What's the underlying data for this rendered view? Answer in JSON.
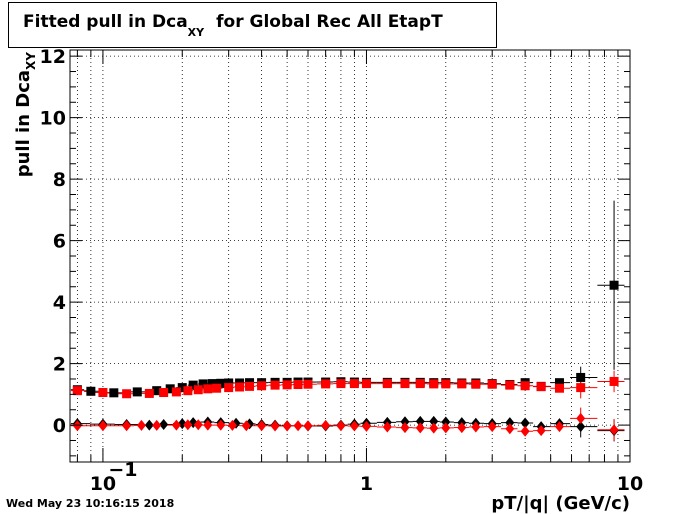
{
  "title_main": "Fitted pull in Dca",
  "title_sub": "XY",
  "title_rest": "for Global Rec All EtapT",
  "timestamp": "Wed May 23 10:16:15 2018",
  "chart_data": {
    "type": "scatter",
    "title": "Fitted pull in Dca XY for Global Rec All EtapT",
    "xlabel": "pT/|q| (GeV/c)",
    "ylabel_main": "pull in Dca",
    "ylabel_sub": "XY",
    "xscale": "log",
    "xlim": [
      0.075,
      10
    ],
    "ylim": [
      -1.2,
      12.2
    ],
    "grid": true,
    "x_ticks": [
      {
        "value": 0.1,
        "label": "10",
        "exp": "−1"
      },
      {
        "value": 1,
        "label": "1",
        "exp": ""
      },
      {
        "value": 10,
        "label": "10",
        "exp": ""
      }
    ],
    "y_ticks": [
      0,
      2,
      4,
      6,
      8,
      10,
      12
    ],
    "series": [
      {
        "marker": "square",
        "color": "#000000",
        "points": [
          {
            "x": 0.08,
            "y": 1.15
          },
          {
            "x": 0.09,
            "y": 1.1
          },
          {
            "x": 0.11,
            "y": 1.05
          },
          {
            "x": 0.135,
            "y": 1.08
          },
          {
            "x": 0.16,
            "y": 1.12
          },
          {
            "x": 0.18,
            "y": 1.18
          },
          {
            "x": 0.2,
            "y": 1.22
          },
          {
            "x": 0.22,
            "y": 1.3
          },
          {
            "x": 0.24,
            "y": 1.34
          },
          {
            "x": 0.26,
            "y": 1.35
          },
          {
            "x": 0.28,
            "y": 1.36
          },
          {
            "x": 0.3,
            "y": 1.37
          },
          {
            "x": 0.33,
            "y": 1.37
          },
          {
            "x": 0.36,
            "y": 1.38
          },
          {
            "x": 0.4,
            "y": 1.38
          },
          {
            "x": 0.45,
            "y": 1.39
          },
          {
            "x": 0.5,
            "y": 1.39
          },
          {
            "x": 0.55,
            "y": 1.4
          },
          {
            "x": 0.6,
            "y": 1.4
          },
          {
            "x": 0.7,
            "y": 1.4
          },
          {
            "x": 0.8,
            "y": 1.41
          },
          {
            "x": 0.9,
            "y": 1.4
          },
          {
            "x": 1.0,
            "y": 1.39
          },
          {
            "x": 1.2,
            "y": 1.39
          },
          {
            "x": 1.4,
            "y": 1.39
          },
          {
            "x": 1.6,
            "y": 1.39
          },
          {
            "x": 1.8,
            "y": 1.38
          },
          {
            "x": 2.0,
            "y": 1.38
          },
          {
            "x": 2.3,
            "y": 1.37
          },
          {
            "x": 2.6,
            "y": 1.37
          },
          {
            "x": 3.0,
            "y": 1.35
          },
          {
            "x": 3.5,
            "y": 1.32
          },
          {
            "x": 4.0,
            "y": 1.38
          },
          {
            "x": 4.6,
            "y": 1.26
          },
          {
            "x": 5.4,
            "y": 1.38
          },
          {
            "x": 6.5,
            "y": 1.55
          },
          {
            "x": 8.7,
            "y": 4.55
          }
        ]
      },
      {
        "marker": "square",
        "color": "#ff0000",
        "points": [
          {
            "x": 0.08,
            "y": 1.12
          },
          {
            "x": 0.1,
            "y": 1.06
          },
          {
            "x": 0.123,
            "y": 1.02
          },
          {
            "x": 0.15,
            "y": 1.03
          },
          {
            "x": 0.17,
            "y": 1.06
          },
          {
            "x": 0.19,
            "y": 1.08
          },
          {
            "x": 0.21,
            "y": 1.12
          },
          {
            "x": 0.23,
            "y": 1.15
          },
          {
            "x": 0.25,
            "y": 1.18
          },
          {
            "x": 0.27,
            "y": 1.2
          },
          {
            "x": 0.3,
            "y": 1.22
          },
          {
            "x": 0.33,
            "y": 1.24
          },
          {
            "x": 0.36,
            "y": 1.26
          },
          {
            "x": 0.4,
            "y": 1.28
          },
          {
            "x": 0.45,
            "y": 1.3
          },
          {
            "x": 0.5,
            "y": 1.31
          },
          {
            "x": 0.55,
            "y": 1.32
          },
          {
            "x": 0.6,
            "y": 1.33
          },
          {
            "x": 0.7,
            "y": 1.34
          },
          {
            "x": 0.8,
            "y": 1.35
          },
          {
            "x": 0.9,
            "y": 1.35
          },
          {
            "x": 1.0,
            "y": 1.35
          },
          {
            "x": 1.2,
            "y": 1.35
          },
          {
            "x": 1.4,
            "y": 1.35
          },
          {
            "x": 1.6,
            "y": 1.35
          },
          {
            "x": 1.8,
            "y": 1.34
          },
          {
            "x": 2.0,
            "y": 1.34
          },
          {
            "x": 2.3,
            "y": 1.34
          },
          {
            "x": 2.6,
            "y": 1.33
          },
          {
            "x": 3.0,
            "y": 1.33
          },
          {
            "x": 3.5,
            "y": 1.3
          },
          {
            "x": 4.0,
            "y": 1.28
          },
          {
            "x": 4.6,
            "y": 1.25
          },
          {
            "x": 5.4,
            "y": 1.2
          },
          {
            "x": 6.5,
            "y": 1.22
          },
          {
            "x": 8.7,
            "y": 1.42
          }
        ]
      },
      {
        "marker": "diamond",
        "color": "#000000",
        "points": [
          {
            "x": 0.08,
            "y": 0.05
          },
          {
            "x": 0.1,
            "y": 0.03
          },
          {
            "x": 0.123,
            "y": 0.02
          },
          {
            "x": 0.15,
            "y": 0.0
          },
          {
            "x": 0.17,
            "y": 0.02
          },
          {
            "x": 0.2,
            "y": 0.05
          },
          {
            "x": 0.22,
            "y": 0.08
          },
          {
            "x": 0.25,
            "y": 0.1
          },
          {
            "x": 0.28,
            "y": 0.08
          },
          {
            "x": 0.32,
            "y": 0.06
          },
          {
            "x": 0.36,
            "y": 0.04
          },
          {
            "x": 0.4,
            "y": 0.02
          },
          {
            "x": 0.45,
            "y": 0.0
          },
          {
            "x": 0.5,
            "y": -0.02
          },
          {
            "x": 0.6,
            "y": -0.03
          },
          {
            "x": 0.7,
            "y": -0.03
          },
          {
            "x": 0.8,
            "y": 0.0
          },
          {
            "x": 0.9,
            "y": 0.03
          },
          {
            "x": 1.0,
            "y": 0.06
          },
          {
            "x": 1.2,
            "y": 0.09
          },
          {
            "x": 1.4,
            "y": 0.11
          },
          {
            "x": 1.6,
            "y": 0.12
          },
          {
            "x": 1.8,
            "y": 0.12
          },
          {
            "x": 2.0,
            "y": 0.1
          },
          {
            "x": 2.3,
            "y": 0.08
          },
          {
            "x": 2.6,
            "y": 0.06
          },
          {
            "x": 3.0,
            "y": 0.05
          },
          {
            "x": 3.5,
            "y": 0.08
          },
          {
            "x": 4.0,
            "y": 0.07
          },
          {
            "x": 4.6,
            "y": -0.05
          },
          {
            "x": 5.4,
            "y": 0.05
          },
          {
            "x": 6.5,
            "y": -0.05
          },
          {
            "x": 8.7,
            "y": -0.18
          }
        ]
      },
      {
        "marker": "diamond",
        "color": "#ff0000",
        "points": [
          {
            "x": 0.08,
            "y": -0.02
          },
          {
            "x": 0.1,
            "y": -0.02
          },
          {
            "x": 0.123,
            "y": -0.02
          },
          {
            "x": 0.14,
            "y": -0.01
          },
          {
            "x": 0.16,
            "y": -0.01
          },
          {
            "x": 0.19,
            "y": 0.0
          },
          {
            "x": 0.21,
            "y": 0.01
          },
          {
            "x": 0.23,
            "y": 0.01
          },
          {
            "x": 0.25,
            "y": 0.0
          },
          {
            "x": 0.28,
            "y": 0.0
          },
          {
            "x": 0.31,
            "y": -0.01
          },
          {
            "x": 0.35,
            "y": -0.02
          },
          {
            "x": 0.4,
            "y": -0.02
          },
          {
            "x": 0.45,
            "y": -0.03
          },
          {
            "x": 0.5,
            "y": -0.03
          },
          {
            "x": 0.55,
            "y": -0.02
          },
          {
            "x": 0.6,
            "y": -0.02
          },
          {
            "x": 0.7,
            "y": -0.01
          },
          {
            "x": 0.8,
            "y": -0.02
          },
          {
            "x": 0.9,
            "y": -0.03
          },
          {
            "x": 1.0,
            "y": -0.04
          },
          {
            "x": 1.2,
            "y": -0.06
          },
          {
            "x": 1.4,
            "y": -0.08
          },
          {
            "x": 1.6,
            "y": -0.09
          },
          {
            "x": 1.8,
            "y": -0.1
          },
          {
            "x": 2.0,
            "y": -0.09
          },
          {
            "x": 2.3,
            "y": -0.08
          },
          {
            "x": 2.6,
            "y": -0.06
          },
          {
            "x": 3.0,
            "y": -0.05
          },
          {
            "x": 3.5,
            "y": -0.12
          },
          {
            "x": 4.0,
            "y": -0.2
          },
          {
            "x": 4.6,
            "y": -0.18
          },
          {
            "x": 5.4,
            "y": -0.05
          },
          {
            "x": 6.5,
            "y": 0.22
          },
          {
            "x": 8.7,
            "y": -0.15
          }
        ]
      }
    ]
  }
}
